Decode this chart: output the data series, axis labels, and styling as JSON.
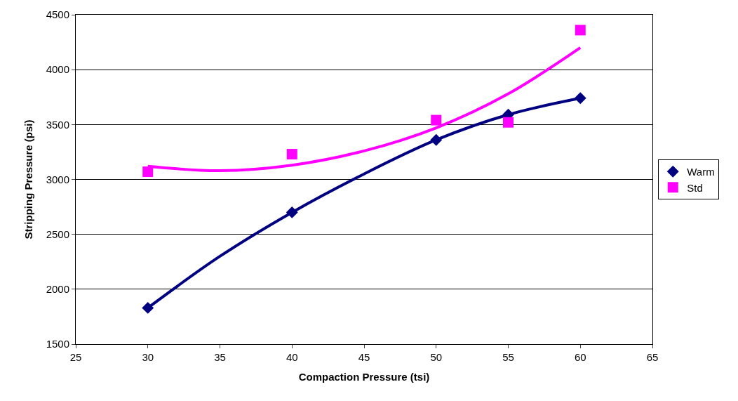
{
  "chart_data": {
    "type": "scatter",
    "xlabel": "Compaction Pressure (tsi)",
    "ylabel": "Stripping Pressure (psi)",
    "xlim": [
      25,
      65
    ],
    "xticks": [
      25,
      30,
      35,
      40,
      45,
      50,
      55,
      60,
      65
    ],
    "ylim": [
      1500,
      4500
    ],
    "yticks": [
      1500,
      2000,
      2500,
      3000,
      3500,
      4000,
      4500
    ],
    "grid": "y",
    "legend": "right",
    "series": [
      {
        "type": "line",
        "color": "#000080",
        "marker": "none",
        "x": [
          30,
          35,
          40,
          45,
          50,
          55,
          60
        ],
        "values": [
          1830,
          2300,
          2700,
          3050,
          3360,
          3590,
          3740
        ]
      },
      {
        "type": "line",
        "color": "#ff00ff",
        "marker": "none",
        "x": [
          30,
          35,
          40,
          45,
          50,
          55,
          60
        ],
        "values": [
          3120,
          3080,
          3130,
          3260,
          3470,
          3780,
          4200
        ]
      },
      {
        "name": "Warm",
        "color": "#000080",
        "marker": "diamond",
        "x": [
          30,
          40,
          50,
          55,
          60
        ],
        "values": [
          1830,
          2700,
          3360,
          3590,
          3740
        ]
      },
      {
        "name": "Std",
        "color": "#ff00ff",
        "marker": "square",
        "x": [
          30,
          40,
          50,
          55,
          60
        ],
        "values": [
          3070,
          3230,
          3540,
          3520,
          4360
        ]
      }
    ]
  }
}
